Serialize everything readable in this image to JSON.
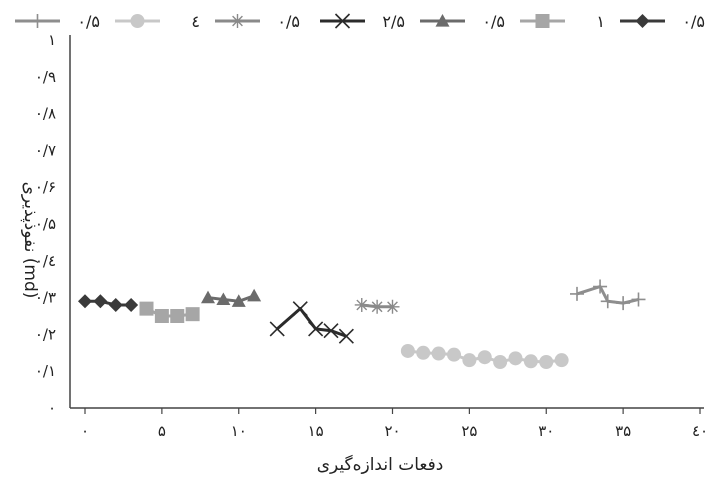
{
  "chart_data": {
    "type": "line",
    "xlabel": "دفعات اندازه‌گیری",
    "ylabel": "نفوذپذیری (md)",
    "xlim": [
      0,
      40
    ],
    "ylim": [
      0,
      1
    ],
    "x_ticks": [
      0,
      5,
      10,
      15,
      20,
      25,
      30,
      35,
      40
    ],
    "x_tick_labels": [
      "۰",
      "۵",
      "۱۰",
      "۱۵",
      "۲۰",
      "۲۵",
      "۳۰",
      "۳۵",
      "٤۰"
    ],
    "y_ticks": [
      0,
      0.1,
      0.2,
      0.3,
      0.4,
      0.5,
      0.6,
      0.7,
      0.8,
      0.9,
      1
    ],
    "y_tick_labels": [
      "۰",
      "۰/۱",
      "۰/۲",
      "۰/۳",
      "۰/٤",
      "۰/۵",
      "۰/۶",
      "۰/۷",
      "۰/۸",
      "۰/۹",
      "۱"
    ],
    "grid": false,
    "legend_position": "top",
    "series": [
      {
        "name": "۰/۵",
        "marker": "diamond",
        "color": "#3a3a3a",
        "x": [
          0,
          1,
          2,
          3
        ],
        "y": [
          0.29,
          0.29,
          0.28,
          0.28
        ]
      },
      {
        "name": "۱",
        "marker": "square",
        "color": "#a6a6a6",
        "x": [
          4,
          5,
          6,
          7
        ],
        "y": [
          0.27,
          0.25,
          0.25,
          0.255
        ]
      },
      {
        "name": "۰/۵",
        "marker": "triangle",
        "color": "#6b6b6b",
        "x": [
          8,
          9,
          10,
          11
        ],
        "y": [
          0.3,
          0.295,
          0.29,
          0.305
        ]
      },
      {
        "name": "۲/۵",
        "marker": "x",
        "color": "#2b2b2b",
        "x": [
          12.5,
          14,
          15,
          16,
          17
        ],
        "y": [
          0.215,
          0.27,
          0.215,
          0.21,
          0.195
        ]
      },
      {
        "name": "۰/۵",
        "marker": "star",
        "color": "#8a8a8a",
        "x": [
          18,
          19,
          20
        ],
        "y": [
          0.28,
          0.275,
          0.275
        ]
      },
      {
        "name": "٤",
        "marker": "circle",
        "color": "#c8c8c8",
        "x": [
          21,
          22,
          23,
          24,
          25,
          26,
          27,
          28,
          29,
          30,
          31
        ],
        "y": [
          0.155,
          0.15,
          0.148,
          0.145,
          0.13,
          0.138,
          0.125,
          0.135,
          0.127,
          0.125,
          0.13
        ]
      },
      {
        "name": "۰/۵",
        "marker": "plus",
        "color": "#8e8e8e",
        "x": [
          32,
          33.5,
          34,
          35,
          36
        ],
        "y": [
          0.31,
          0.33,
          0.29,
          0.285,
          0.295
        ]
      }
    ]
  }
}
